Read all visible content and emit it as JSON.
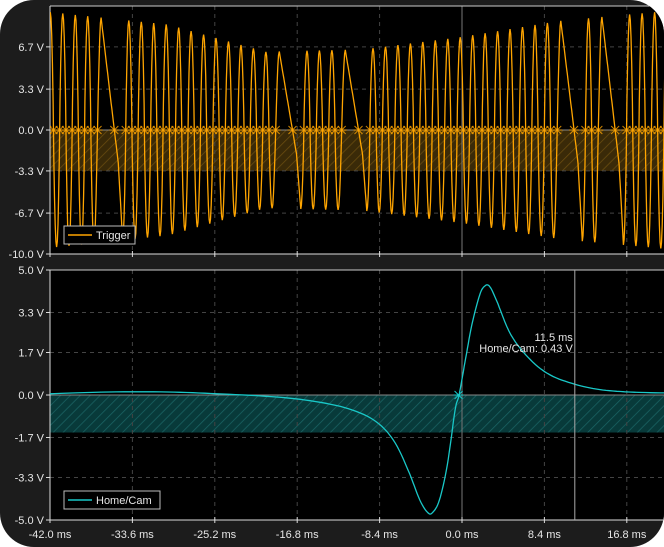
{
  "chart_data": [
    {
      "type": "line",
      "legend": "Trigger",
      "legend_placement": "bottom-left",
      "color": "#ffa500",
      "y_ticks": [
        "6.7 V",
        "3.3 V",
        "0.0 V",
        "-3.3 V",
        "-6.7 V",
        "-10.0 V"
      ],
      "y_tick_values": [
        6.7,
        3.3,
        0.0,
        -3.3,
        -6.7,
        -10.0
      ],
      "ylim": [
        -10,
        10
      ],
      "xlim": [
        -42,
        21
      ],
      "unit_y": "V",
      "shaded_band": [
        -3.3,
        0
      ],
      "grid": true,
      "waveform": {
        "tooth_period_ms": 1.27,
        "missing_tooth_times_ms": [
          -37.4,
          -18.6,
          -11.9,
          9.5,
          13.6
        ],
        "amplitude_envelope": [
          [
            -42,
            9.5
          ],
          [
            -30,
            8.5
          ],
          [
            -20,
            6.3
          ],
          [
            -10,
            6.5
          ],
          [
            0,
            7.5
          ],
          [
            10,
            8.8
          ],
          [
            21,
            9.6
          ]
        ]
      }
    },
    {
      "type": "line",
      "legend": "Home/Cam",
      "legend_placement": "bottom-left",
      "color": "#19c8c8",
      "y_ticks": [
        "5.0 V",
        "3.3 V",
        "1.7 V",
        "0.0 V",
        "-1.7 V",
        "-3.3 V",
        "-5.0 V"
      ],
      "y_tick_values": [
        5.0,
        3.3,
        1.7,
        0.0,
        -1.7,
        -3.3,
        -5.0
      ],
      "ylim": [
        -5,
        5
      ],
      "xlim": [
        -42,
        21
      ],
      "shaded_band": [
        -1.5,
        0
      ],
      "grid": true,
      "x_ticks": [
        "-42.0 ms",
        "-33.6 ms",
        "-25.2 ms",
        "-16.8 ms",
        "-8.4 ms",
        "0.0 ms",
        "8.4 ms",
        "16.8 ms"
      ],
      "x_tick_values": [
        -42,
        -33.6,
        -25.2,
        -16.8,
        -8.4,
        0,
        8.4,
        16.8
      ],
      "points": [
        [
          -42,
          0.05
        ],
        [
          -36,
          0.12
        ],
        [
          -30,
          0.12
        ],
        [
          -25,
          0.05
        ],
        [
          -20,
          -0.05
        ],
        [
          -16,
          -0.2
        ],
        [
          -12,
          -0.5
        ],
        [
          -9,
          -1.0
        ],
        [
          -7,
          -1.8
        ],
        [
          -5.5,
          -3.0
        ],
        [
          -4.3,
          -4.2
        ],
        [
          -3.5,
          -4.7
        ],
        [
          -3.0,
          -4.7
        ],
        [
          -2.3,
          -4.2
        ],
        [
          -1.5,
          -2.8
        ],
        [
          -0.7,
          -0.6
        ],
        [
          -0.3,
          0.0
        ],
        [
          0.3,
          1.3
        ],
        [
          1.0,
          2.8
        ],
        [
          1.8,
          4.0
        ],
        [
          2.3,
          4.35
        ],
        [
          2.8,
          4.35
        ],
        [
          3.5,
          3.8
        ],
        [
          5,
          2.4
        ],
        [
          7,
          1.4
        ],
        [
          9,
          0.8
        ],
        [
          11.5,
          0.43
        ],
        [
          14,
          0.22
        ],
        [
          17,
          0.12
        ],
        [
          21,
          0.08
        ]
      ],
      "cursor": {
        "x_ms": 11.5,
        "time_label": "11.5 ms",
        "value_label": "Home/Cam: 0.43 V"
      }
    }
  ]
}
